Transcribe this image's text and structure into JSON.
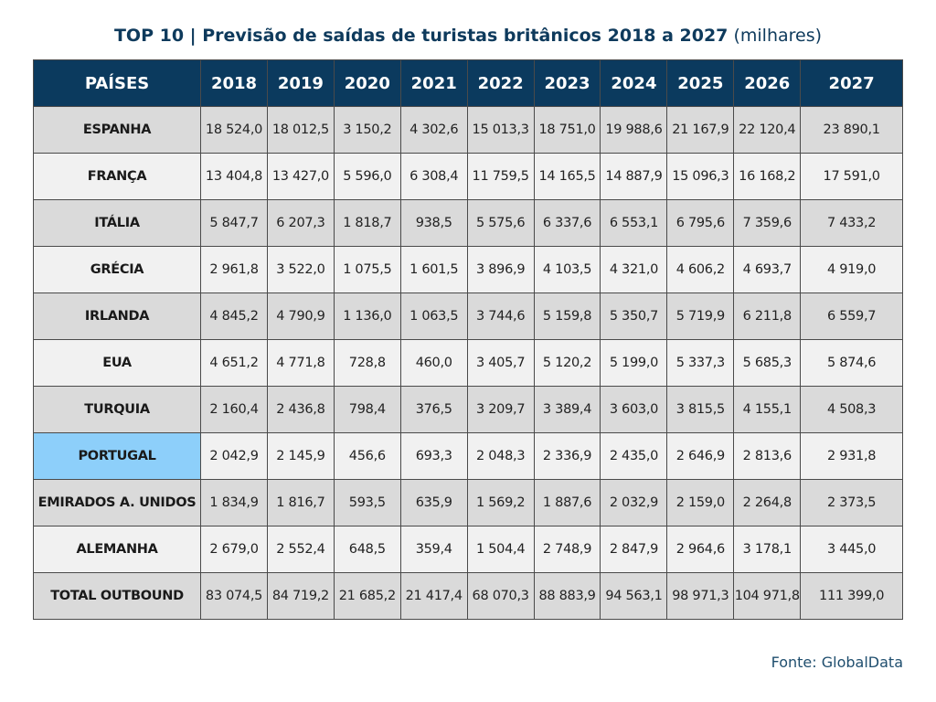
{
  "title": {
    "main": "TOP 10 | Previsão de saídas de turistas britânicos 2018 a 2027",
    "unit": "(milhares)"
  },
  "source": "Fonte: GlobalData",
  "colors": {
    "header_bg": "#0b3a5e",
    "title_text": "#0e3a5c",
    "highlight": "#8dcffa",
    "row_dark": "#dadada",
    "row_light": "#f1f1f1"
  },
  "chart_data": {
    "type": "table",
    "title": "TOP 10 | Previsão de saídas de turistas britânicos 2018 a 2027 (milhares)",
    "header": "PAÍSES",
    "years": [
      "2018",
      "2019",
      "2020",
      "2021",
      "2022",
      "2023",
      "2024",
      "2025",
      "2026",
      "2027"
    ],
    "highlighted_row": "PORTUGAL",
    "rows": [
      {
        "country": "ESPANHA",
        "values": [
          "18 524,0",
          "18 012,5",
          "3 150,2",
          "4 302,6",
          "15 013,3",
          "18 751,0",
          "19 988,6",
          "21 167,9",
          "22 120,4",
          "23 890,1"
        ]
      },
      {
        "country": "FRANÇA",
        "values": [
          "13 404,8",
          "13 427,0",
          "5 596,0",
          "6 308,4",
          "11 759,5",
          "14 165,5",
          "14 887,9",
          "15 096,3",
          "16 168,2",
          "17 591,0"
        ]
      },
      {
        "country": "ITÁLIA",
        "values": [
          "5 847,7",
          "6 207,3",
          "1 818,7",
          "938,5",
          "5 575,6",
          "6 337,6",
          "6 553,1",
          "6 795,6",
          "7 359,6",
          "7 433,2"
        ]
      },
      {
        "country": "GRÉCIA",
        "values": [
          "2 961,8",
          "3 522,0",
          "1 075,5",
          "1 601,5",
          "3 896,9",
          "4 103,5",
          "4 321,0",
          "4 606,2",
          "4 693,7",
          "4 919,0"
        ]
      },
      {
        "country": "IRLANDA",
        "values": [
          "4 845,2",
          "4 790,9",
          "1 136,0",
          "1 063,5",
          "3 744,6",
          "5 159,8",
          "5 350,7",
          "5 719,9",
          "6 211,8",
          "6 559,7"
        ]
      },
      {
        "country": "EUA",
        "values": [
          "4 651,2",
          "4 771,8",
          "728,8",
          "460,0",
          "3 405,7",
          "5 120,2",
          "5 199,0",
          "5 337,3",
          "5 685,3",
          "5 874,6"
        ]
      },
      {
        "country": "TURQUIA",
        "values": [
          "2 160,4",
          "2 436,8",
          "798,4",
          "376,5",
          "3 209,7",
          "3 389,4",
          "3 603,0",
          "3 815,5",
          "4 155,1",
          "4 508,3"
        ]
      },
      {
        "country": "PORTUGAL",
        "values": [
          "2 042,9",
          "2 145,9",
          "456,6",
          "693,3",
          "2 048,3",
          "2 336,9",
          "2 435,0",
          "2 646,9",
          "2 813,6",
          "2 931,8"
        ]
      },
      {
        "country": "EMIRADOS A. UNIDOS",
        "values": [
          "1 834,9",
          "1 816,7",
          "593,5",
          "635,9",
          "1 569,2",
          "1 887,6",
          "2 032,9",
          "2 159,0",
          "2 264,8",
          "2 373,5"
        ]
      },
      {
        "country": "ALEMANHA",
        "values": [
          "2 679,0",
          "2 552,4",
          "648,5",
          "359,4",
          "1 504,4",
          "2 748,9",
          "2 847,9",
          "2 964,6",
          "3 178,1",
          "3 445,0"
        ]
      },
      {
        "country": "TOTAL OUTBOUND",
        "values": [
          "83 074,5",
          "84 719,2",
          "21 685,2",
          "21 417,4",
          "68 070,3",
          "88 883,9",
          "94 563,1",
          "98 971,3",
          "104 971,8",
          "111 399,0"
        ]
      }
    ]
  }
}
